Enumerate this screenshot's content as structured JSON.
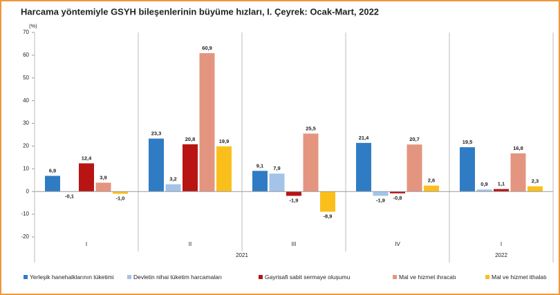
{
  "chart_data": {
    "type": "bar",
    "title": "Harcama yöntemiyle GSYH bileşenlerinin büyüme hızları, I. Çeyrek: Ocak-Mart, 2022",
    "y_label": "(%)",
    "categories": [
      "I",
      "II",
      "III",
      "IV",
      "I"
    ],
    "x_groups": [
      {
        "name": "2021",
        "count": 4
      },
      {
        "name": "2022",
        "count": 1
      }
    ],
    "ylim": [
      -20,
      70
    ],
    "yticks": [
      -20,
      -10,
      0,
      10,
      20,
      30,
      40,
      50,
      60,
      70
    ],
    "grid": false,
    "legend": "bottom",
    "series": [
      {
        "name": "Yerleşik hanehalklarının tüketimi",
        "color": "#2f7cc4",
        "values": [
          6.9,
          23.3,
          9.1,
          21.4,
          19.5
        ],
        "value_labels": [
          "6,9",
          "23,3",
          "9,1",
          "21,4",
          "19,5"
        ]
      },
      {
        "name": "Devletin nihai tüketim harcamaları",
        "color": "#a3c4e8",
        "values": [
          -0.1,
          3.2,
          7.9,
          -1.9,
          0.9
        ],
        "value_labels": [
          "-0,1",
          "3,2",
          "7,9",
          "-1,9",
          "0,9"
        ]
      },
      {
        "name": "Gayrisafi sabit sermaye oluşumu",
        "color": "#b81414",
        "values": [
          12.4,
          20.8,
          -1.9,
          -0.8,
          1.1
        ],
        "value_labels": [
          "12,4",
          "20,8",
          "-1,9",
          "-0,8",
          "1,1"
        ]
      },
      {
        "name": "Mal ve hizmet ihracatı",
        "color": "#e49580",
        "values": [
          3.9,
          60.9,
          25.5,
          20.7,
          16.8
        ],
        "value_labels": [
          "3,9",
          "60,9",
          "25,5",
          "20,7",
          "16,8"
        ]
      },
      {
        "name": "Mal ve hizmet ithalatı",
        "color": "#fbbf1c",
        "values": [
          -1.0,
          19.9,
          -8.9,
          2.6,
          2.3
        ],
        "value_labels": [
          "-1,0",
          "19,9",
          "-8,9",
          "2,6",
          "2,3"
        ]
      }
    ]
  }
}
